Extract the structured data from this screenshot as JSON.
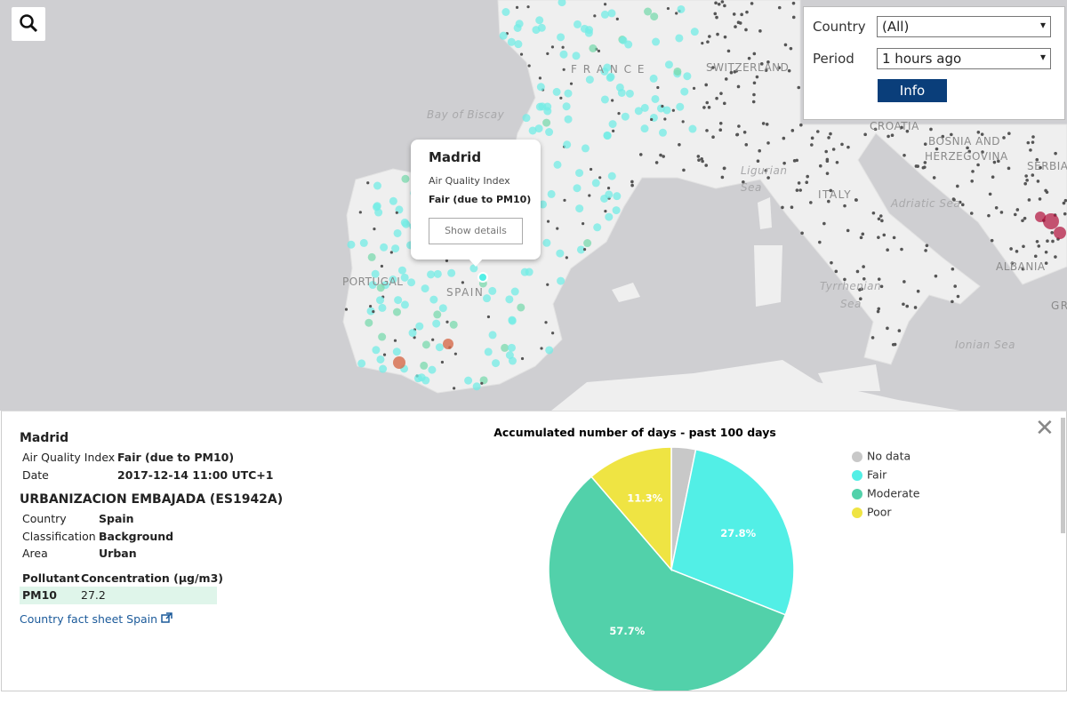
{
  "map": {
    "labels": [
      "F R A N C E",
      "SWITZERLAND",
      "Bay of Biscay",
      "PORTUGAL",
      "SPAIN",
      "Ligurian",
      "Sea",
      "ITALY",
      "Adriatic Sea",
      "CROATIA",
      "BOSNIA AND",
      "HERZEGOVINA",
      "SERBIA",
      "ALBANIA",
      "Tyrrhenian",
      "Sea",
      "Ionian Sea",
      "GR"
    ],
    "popup": {
      "city": "Madrid",
      "label": "Air Quality Index",
      "value": "Fair (due to PM10)",
      "button": "Show details"
    }
  },
  "filters": {
    "country_label": "Country",
    "country_value": "(All)",
    "period_label": "Period",
    "period_value": "1 hours ago",
    "info_button": "Info"
  },
  "details": {
    "city": "Madrid",
    "aqi_label": "Air Quality Index",
    "aqi_value": "Fair (due to PM10)",
    "date_label": "Date",
    "date_value": "2017-12-14 11:00 UTC+1",
    "station": "URBANIZACION EMBAJADA (ES1942A)",
    "rows": [
      [
        "Country",
        "Spain"
      ],
      [
        "Classification",
        "Background"
      ],
      [
        "Area",
        "Urban"
      ]
    ],
    "pollutant_header": [
      "Pollutant",
      "Concentration (μg/m3)"
    ],
    "pollutant_row": [
      "PM10",
      "27.2"
    ],
    "link": "Country fact sheet Spain"
  },
  "chart_data": {
    "type": "pie",
    "title": "Accumulated number of days - past 100 days",
    "categories": [
      "No data",
      "Fair",
      "Moderate",
      "Poor"
    ],
    "values": [
      3.2,
      27.8,
      57.7,
      11.3
    ],
    "value_labels": [
      null,
      "27.8%",
      "57.7%",
      "11.3%"
    ],
    "colors": [
      "#c8c8c8",
      "#52efe6",
      "#52d1aa",
      "#efe443"
    ]
  }
}
